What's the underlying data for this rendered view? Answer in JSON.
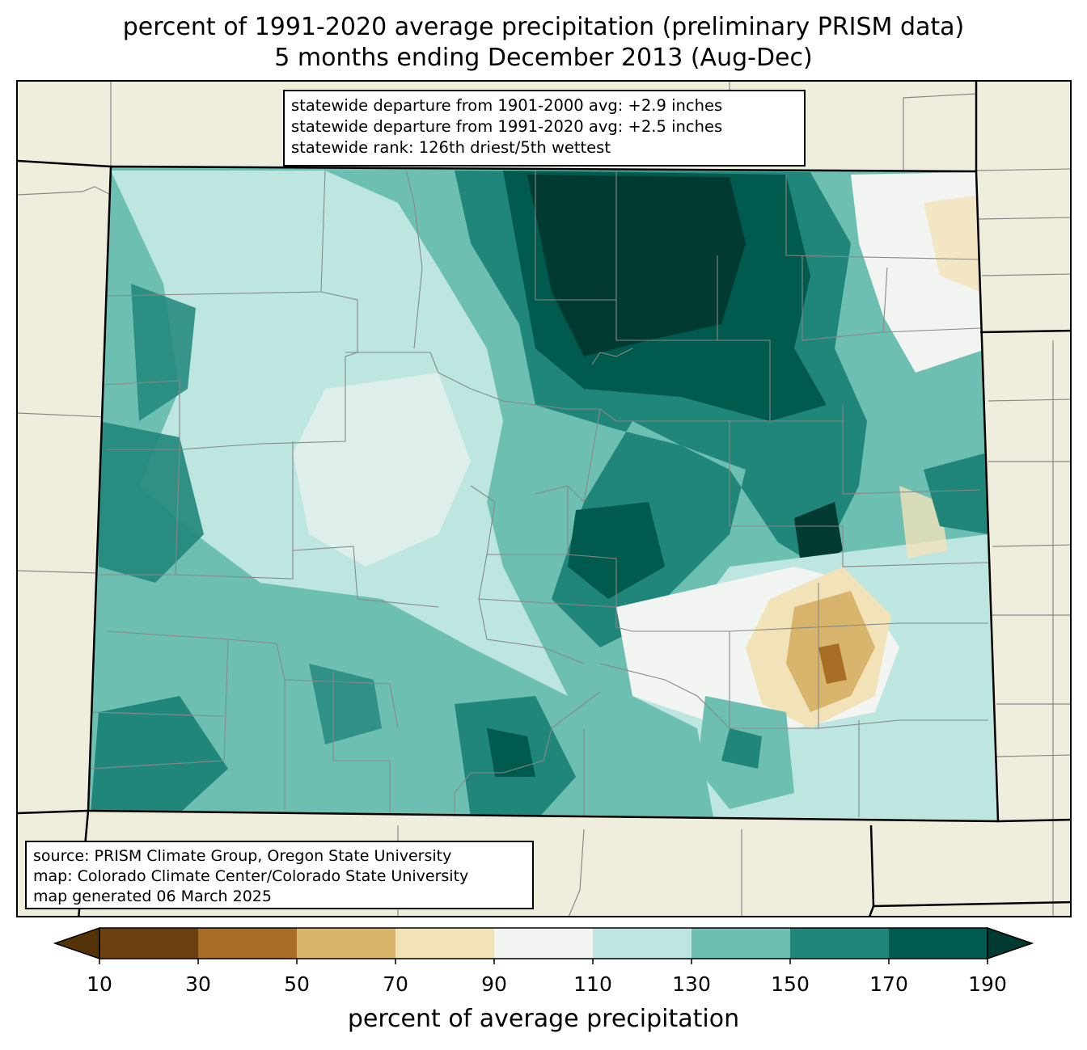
{
  "title": {
    "line1": "percent of 1991-2020 average precipitation (preliminary PRISM data)",
    "line2": "5 months ending December 2013 (Aug-Dec)"
  },
  "stats": {
    "line1": "statewide departure from 1901-2000 avg: +2.9 inches",
    "line2": "statewide departure from 1991-2020 avg: +2.5 inches",
    "line3": "statewide rank: 126th driest/5th wettest"
  },
  "source": {
    "line1": "source: PRISM Climate Group, Oregon State University",
    "line2": "map: Colorado Climate Center/Colorado State University",
    "line3": "map generated 06 March 2025"
  },
  "colorbar": {
    "label": "percent of average precipitation",
    "ticks": [
      "10",
      "30",
      "50",
      "70",
      "90",
      "110",
      "130",
      "150",
      "170",
      "190"
    ],
    "colors": [
      "#6b3f10",
      "#a86e26",
      "#d8b46c",
      "#f2e2b8",
      "#f2f4f2",
      "#bde6e0",
      "#6dbfb2",
      "#21867a",
      "#005a4e"
    ],
    "under_color": "#553309",
    "over_color": "#003a30"
  },
  "map": {
    "background_color": "#efeddb",
    "boundary_color": "#888888"
  }
}
